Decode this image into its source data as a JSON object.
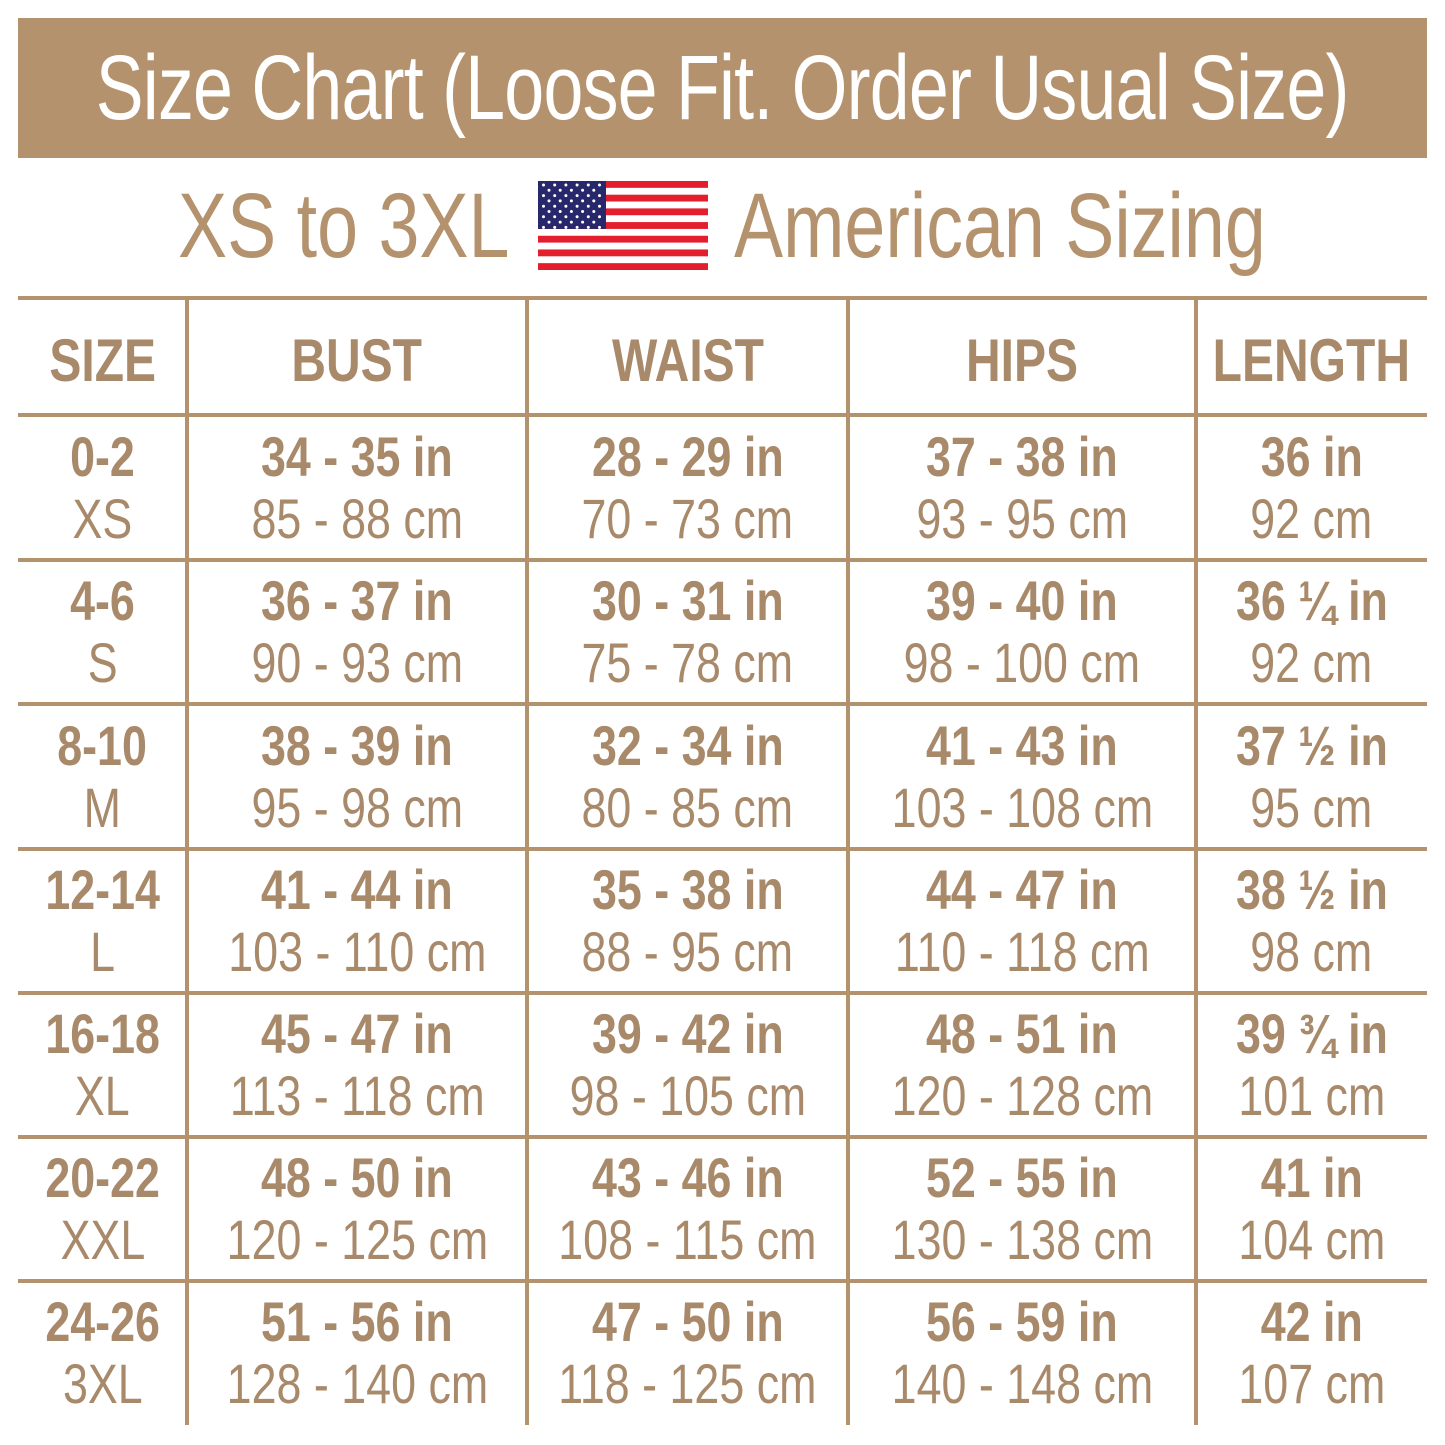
{
  "title": "Size Chart (Loose Fit. Order Usual Size)",
  "subtitle": {
    "left": "XS to 3XL",
    "right": "American Sizing",
    "flag_icon": "us-flag-icon"
  },
  "colors": {
    "accent": "#b3926d",
    "text": "#a8896a",
    "flag_red": "#e31e2d",
    "flag_blue": "#27276b"
  },
  "table": {
    "headers": [
      "SIZE",
      "BUST",
      "WAIST",
      "HIPS",
      "LENGTH"
    ],
    "rows": [
      [
        [
          "0-2",
          "XS"
        ],
        [
          "34 - 35 in",
          "85 - 88 cm"
        ],
        [
          "28 - 29 in",
          "70 - 73 cm"
        ],
        [
          "37 - 38 in",
          "93 - 95 cm"
        ],
        [
          "36 in",
          "92 cm"
        ]
      ],
      [
        [
          "4-6",
          "S"
        ],
        [
          "36 - 37 in",
          "90 - 93 cm"
        ],
        [
          "30 - 31 in",
          "75 - 78 cm"
        ],
        [
          "39 - 40 in",
          "98 - 100 cm"
        ],
        [
          "36 ¼ in",
          "92 cm"
        ]
      ],
      [
        [
          "8-10",
          "M"
        ],
        [
          "38 - 39 in",
          "95 - 98 cm"
        ],
        [
          "32 - 34 in",
          "80 - 85 cm"
        ],
        [
          "41 - 43 in",
          "103 - 108 cm"
        ],
        [
          "37 ½ in",
          "95 cm"
        ]
      ],
      [
        [
          "12-14",
          "L"
        ],
        [
          "41 - 44 in",
          "103 - 110 cm"
        ],
        [
          "35 - 38 in",
          "88 - 95 cm"
        ],
        [
          "44 - 47 in",
          "110 - 118 cm"
        ],
        [
          "38 ½ in",
          "98 cm"
        ]
      ],
      [
        [
          "16-18",
          "XL"
        ],
        [
          "45 - 47 in",
          "113 - 118 cm"
        ],
        [
          "39 - 42 in",
          "98 - 105 cm"
        ],
        [
          "48 - 51 in",
          "120 - 128 cm"
        ],
        [
          "39 ¾ in",
          "101 cm"
        ]
      ],
      [
        [
          "20-22",
          "XXL"
        ],
        [
          "48 - 50 in",
          "120 - 125 cm"
        ],
        [
          "43 - 46 in",
          "108 - 115 cm"
        ],
        [
          "52 - 55 in",
          "130 - 138 cm"
        ],
        [
          "41 in",
          "104 cm"
        ]
      ],
      [
        [
          "24-26",
          "3XL"
        ],
        [
          "51 - 56 in",
          "128 - 140 cm"
        ],
        [
          "47 - 50 in",
          "118 - 125 cm"
        ],
        [
          "56 - 59 in",
          "140 - 148 cm"
        ],
        [
          "42 in",
          "107 cm"
        ]
      ]
    ]
  }
}
